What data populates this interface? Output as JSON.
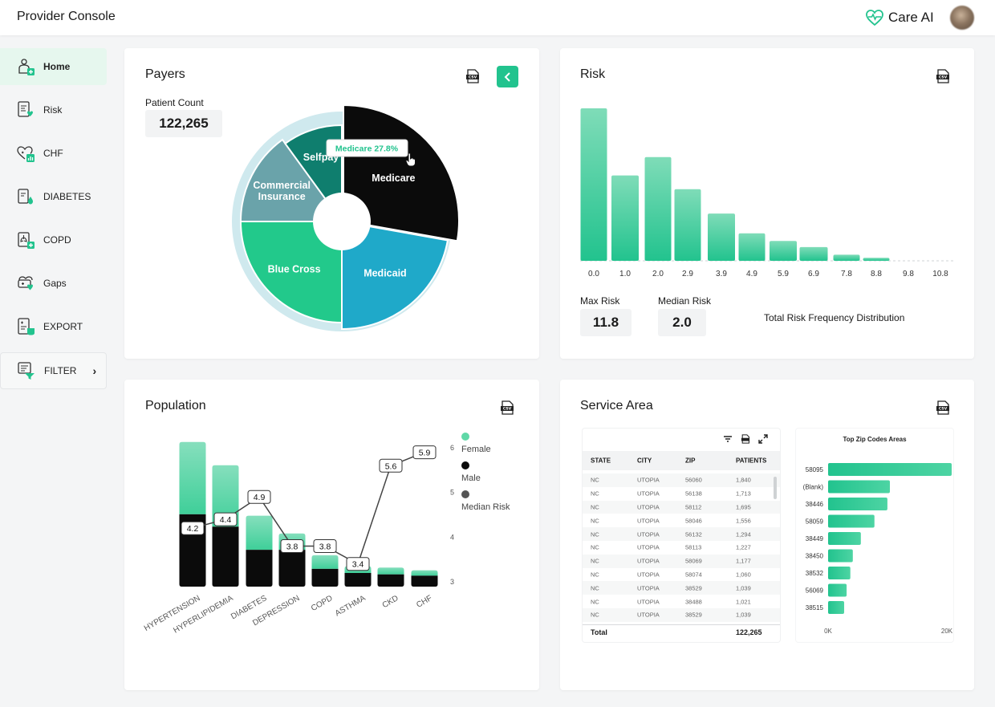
{
  "app": {
    "title": "Provider Console",
    "brand": "Care AI"
  },
  "sidebar": {
    "items": [
      {
        "label": "Home",
        "icon": "doctor-icon",
        "active": true
      },
      {
        "label": "Risk",
        "icon": "risk-clipboard-icon"
      },
      {
        "label": "CHF",
        "icon": "heart-chart-icon"
      },
      {
        "label": "DIABETES",
        "icon": "blood-drop-icon"
      },
      {
        "label": "COPD",
        "icon": "lungs-icon"
      },
      {
        "label": "Gaps",
        "icon": "gaps-icon"
      },
      {
        "label": "EXPORT",
        "icon": "export-icon"
      }
    ],
    "filter_label": "FILTER"
  },
  "colors": {
    "accent": "#22c38e",
    "medicare": "#0b0b0b",
    "medicaid": "#1fa9c9",
    "blue_cross": "#22c98b",
    "commercial": "#6aa3aa",
    "selfpay": "#0f7e6e"
  },
  "payers": {
    "title": "Payers",
    "patient_count_label": "Patient Count",
    "patient_count": "122,265",
    "tooltip": "Medicare 27.8%",
    "chart_data": {
      "type": "pie",
      "slices": [
        {
          "label": "Medicare",
          "value": 27.8
        },
        {
          "label": "Medicaid",
          "value": 22.2
        },
        {
          "label": "Blue Cross",
          "value": 25
        },
        {
          "label": "Commercial Insurance",
          "value": 15
        },
        {
          "label": "Selfpay",
          "value": 10
        }
      ]
    }
  },
  "risk": {
    "title": "Risk",
    "max_label": "Max Risk",
    "max_value": "11.8",
    "median_label": "Median Risk",
    "median_value": "2.0",
    "caption": "Total Risk Frequency Distribution",
    "chart_data": {
      "type": "bar",
      "categories": [
        "0.0",
        "1.0",
        "2.0",
        "2.9",
        "3.9",
        "4.9",
        "5.9",
        "6.9",
        "7.8",
        "8.8",
        "9.8",
        "10.8"
      ],
      "values": [
        100,
        56,
        68,
        47,
        31,
        18,
        13,
        9,
        4,
        2,
        0,
        0
      ]
    }
  },
  "population": {
    "title": "Population",
    "legend": [
      "Female",
      "Male",
      "Median Risk"
    ],
    "chart_data": {
      "type": "bar",
      "categories": [
        "HYPERTENSION",
        "HYPERLIPIDEMIA",
        "DIABETES",
        "DEPRESSION",
        "COPD",
        "ASTHMA",
        "CKD",
        "CHF"
      ],
      "series": [
        {
          "name": "Male",
          "values": [
            53,
            44,
            27,
            27,
            13,
            10,
            9,
            8
          ]
        },
        {
          "name": "Female",
          "values": [
            53,
            45,
            25,
            12,
            10,
            5,
            5,
            4
          ]
        },
        {
          "name": "Median Risk",
          "values": [
            4.2,
            4.4,
            4.9,
            3.8,
            3.8,
            3.4,
            5.6,
            5.9
          ]
        }
      ],
      "y2_ticks": [
        "6",
        "5",
        "4",
        "3"
      ],
      "y2lim": [
        3,
        6
      ]
    }
  },
  "service_area": {
    "title": "Service Area",
    "table": {
      "columns": [
        "STATE",
        "CITY",
        "ZIP",
        "PATIENTS"
      ],
      "rows": [
        [
          "NC",
          "UTOPIA",
          "56060",
          "1,840"
        ],
        [
          "NC",
          "UTOPIA",
          "56138",
          "1,713"
        ],
        [
          "NC",
          "UTOPIA",
          "58112",
          "1,695"
        ],
        [
          "NC",
          "UTOPIA",
          "58046",
          "1,556"
        ],
        [
          "NC",
          "UTOPIA",
          "56132",
          "1,294"
        ],
        [
          "NC",
          "UTOPIA",
          "58113",
          "1,227"
        ],
        [
          "NC",
          "UTOPIA",
          "58069",
          "1,177"
        ],
        [
          "NC",
          "UTOPIA",
          "58074",
          "1,060"
        ],
        [
          "NC",
          "UTOPIA",
          "38529",
          "1,039"
        ],
        [
          "NC",
          "UTOPIA",
          "38488",
          "1,021"
        ],
        [
          "NC",
          "UTOPIA",
          "38529",
          "1,039"
        ]
      ],
      "total_label": "Total",
      "total_value": "122,265"
    },
    "zip_chart": {
      "title": "Top Zip Codes Areas",
      "chart_data": {
        "type": "bar",
        "orientation": "horizontal",
        "categories": [
          "58095",
          "(Blank)",
          "38446",
          "58059",
          "38449",
          "38450",
          "38532",
          "56069",
          "38515"
        ],
        "values": [
          20000,
          10000,
          9600,
          7500,
          5300,
          4000,
          3600,
          3000,
          2600
        ],
        "xlim": [
          0,
          20000
        ],
        "x_ticks": [
          "0K",
          "20K"
        ]
      }
    }
  }
}
